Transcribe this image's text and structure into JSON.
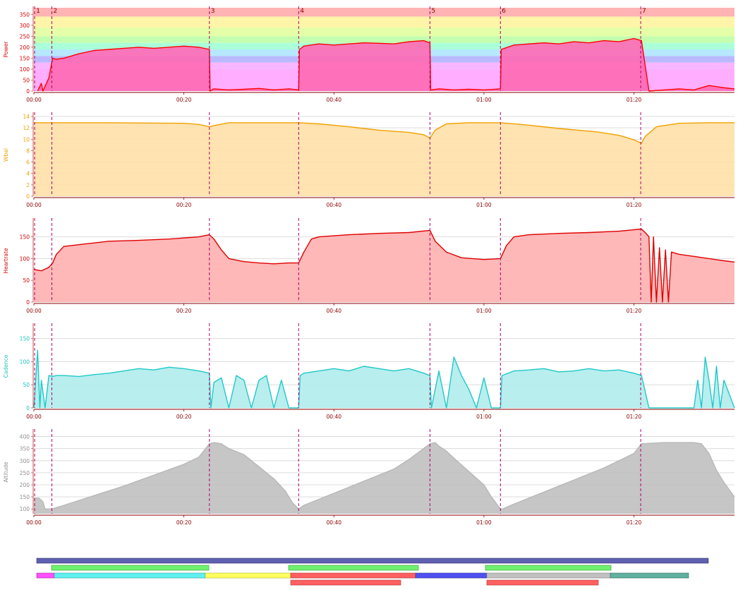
{
  "colors": {
    "axis_text": "#8b0000",
    "time_tick_text": "#8b0000",
    "grid": "#dcdcdc",
    "interval_line": "#b0006a"
  },
  "interval_labels": [
    "1",
    "2",
    "3",
    "4",
    "5",
    "6",
    "7"
  ],
  "chart_data": [
    {
      "type": "area",
      "id": "power",
      "ylabel": "Power",
      "label_color": "#d40000",
      "line_color": "#ff0000",
      "fill_color": "#ff69b4",
      "yticks": [
        0,
        50,
        100,
        150,
        200,
        250,
        300,
        350
      ],
      "ylim": [
        0,
        380
      ],
      "zones": [
        {
          "from": 0,
          "to": 100,
          "color": "#ffadff"
        },
        {
          "from": 100,
          "to": 130,
          "color": "#f7b6ff"
        },
        {
          "from": 130,
          "to": 160,
          "color": "#b9b9ff"
        },
        {
          "from": 160,
          "to": 190,
          "color": "#b6e8ff"
        },
        {
          "from": 190,
          "to": 220,
          "color": "#aaffd8"
        },
        {
          "from": 220,
          "to": 250,
          "color": "#c4ffb0"
        },
        {
          "from": 250,
          "to": 290,
          "color": "#e4ffa8"
        },
        {
          "from": 290,
          "to": 340,
          "color": "#fff5a8"
        },
        {
          "from": 340,
          "to": 380,
          "color": "#ffb3b3"
        }
      ],
      "series": [
        {
          "x": [
            0.5,
            1.0,
            1.2,
            2.0,
            2.5,
            3,
            4,
            5,
            6,
            8,
            10,
            12,
            14,
            16,
            18,
            20,
            22,
            23.4,
            23.5,
            24,
            26,
            28,
            30,
            32,
            34,
            35.3,
            35.4,
            36,
            38,
            40,
            42,
            44,
            46,
            48,
            50,
            52,
            52.8,
            52.9,
            54,
            56,
            58,
            60,
            62.2,
            62.3,
            64,
            66,
            68,
            70,
            72,
            74,
            76,
            78,
            80,
            81,
            82,
            84,
            86,
            88,
            90,
            92,
            93.4
          ],
          "y": [
            0,
            35,
            0,
            60,
            150,
            145,
            150,
            160,
            170,
            185,
            190,
            195,
            200,
            195,
            200,
            205,
            200,
            190,
            0,
            10,
            5,
            8,
            12,
            5,
            10,
            5,
            190,
            205,
            215,
            210,
            215,
            220,
            218,
            215,
            225,
            230,
            220,
            5,
            10,
            5,
            8,
            5,
            10,
            190,
            210,
            215,
            220,
            215,
            225,
            220,
            230,
            225,
            240,
            230,
            0,
            5,
            10,
            5,
            25,
            15,
            10
          ]
        }
      ]
    },
    {
      "type": "area",
      "id": "wbal",
      "ylabel": "Wbal",
      "label_color": "#f0a000",
      "line_color": "#f0a000",
      "fill_color": "#ffe0a8",
      "yticks": [
        0,
        2,
        4,
        6,
        8,
        10,
        12,
        14
      ],
      "ylim": [
        0,
        14.5
      ],
      "series": [
        {
          "x": [
            0,
            5,
            10,
            15,
            20,
            22,
            23.4,
            24,
            26,
            30,
            35.3,
            38,
            42,
            46,
            50,
            52,
            52.8,
            53.5,
            55,
            58,
            62.2,
            65,
            70,
            75,
            78,
            80,
            81,
            81.5,
            83,
            86,
            90,
            93.4
          ],
          "y": [
            12.9,
            12.9,
            12.9,
            12.85,
            12.8,
            12.6,
            12.2,
            12.4,
            12.9,
            12.9,
            12.9,
            12.7,
            12.2,
            11.6,
            11.2,
            10.8,
            10.2,
            11.6,
            12.7,
            12.9,
            12.9,
            12.6,
            11.9,
            11.3,
            10.7,
            9.9,
            9.3,
            10.5,
            12.2,
            12.8,
            12.9,
            12.9
          ]
        }
      ]
    },
    {
      "type": "area",
      "id": "heartrate",
      "ylabel": "Heartrate",
      "label_color": "#d40000",
      "line_color": "#dd0000",
      "fill_color": "#ffb0b0",
      "yticks": [
        0,
        50,
        100,
        150
      ],
      "ylim": [
        0,
        190
      ],
      "series": [
        {
          "x": [
            0,
            1,
            2,
            2.5,
            3,
            4,
            6,
            10,
            14,
            18,
            22,
            23.4,
            24,
            25,
            26,
            28,
            30,
            32,
            34,
            35.3,
            36,
            37,
            38,
            42,
            46,
            50,
            52.8,
            53.5,
            55,
            57,
            60,
            62.2,
            63,
            64,
            66,
            70,
            74,
            78,
            81,
            81.5,
            82,
            82.3,
            82.6,
            83,
            83.4,
            83.8,
            84.2,
            84.6,
            85,
            86,
            88,
            90,
            92,
            93.4
          ],
          "y": [
            75,
            72,
            80,
            90,
            110,
            128,
            132,
            140,
            142,
            145,
            150,
            155,
            145,
            120,
            100,
            93,
            90,
            88,
            90,
            90,
            115,
            145,
            150,
            155,
            158,
            160,
            165,
            140,
            115,
            102,
            98,
            100,
            130,
            150,
            155,
            158,
            160,
            163,
            168,
            160,
            150,
            0,
            150,
            0,
            125,
            0,
            120,
            0,
            115,
            110,
            105,
            100,
            95,
            92
          ]
        }
      ]
    },
    {
      "type": "area",
      "id": "cadence",
      "ylabel": "Cadence",
      "label_color": "#20c0c0",
      "line_color": "#20c8c8",
      "fill_color": "#b0ecec",
      "yticks": [
        0,
        50,
        100,
        150
      ],
      "ylim": [
        0,
        180
      ],
      "series": [
        {
          "x": [
            0,
            0.5,
            0.8,
            1,
            1.5,
            2,
            2.5,
            3,
            4,
            6,
            8,
            10,
            12,
            14,
            16,
            18,
            20,
            22,
            23.4,
            23.6,
            24,
            25,
            26,
            27,
            28,
            29,
            30,
            31,
            32,
            33,
            34,
            35.3,
            35.5,
            36,
            38,
            40,
            42,
            44,
            46,
            48,
            50,
            52,
            52.8,
            53,
            54,
            55,
            56,
            57,
            58,
            59,
            60,
            61,
            62.2,
            62.4,
            64,
            66,
            68,
            70,
            72,
            74,
            76,
            78,
            80,
            81,
            82,
            84,
            86,
            88,
            88.5,
            89,
            89.5,
            90,
            90.5,
            91,
            91.5,
            92,
            93.4
          ],
          "y": [
            0,
            125,
            0,
            60,
            0,
            70,
            68,
            70,
            70,
            68,
            72,
            75,
            80,
            85,
            82,
            88,
            85,
            80,
            75,
            0,
            55,
            65,
            0,
            70,
            60,
            0,
            60,
            70,
            0,
            60,
            0,
            0,
            70,
            75,
            80,
            85,
            80,
            90,
            85,
            80,
            85,
            75,
            70,
            0,
            80,
            0,
            110,
            70,
            40,
            0,
            65,
            0,
            0,
            70,
            80,
            82,
            85,
            78,
            80,
            85,
            80,
            82,
            75,
            70,
            0,
            0,
            0,
            0,
            60,
            0,
            110,
            60,
            0,
            90,
            0,
            60,
            0
          ]
        }
      ]
    },
    {
      "type": "area",
      "id": "altitude",
      "ylabel": "Altitude",
      "label_color": "#909090",
      "line_color": "#b8b8b8",
      "fill_color": "#c0c0c0",
      "yticks": [
        100,
        150,
        200,
        250,
        300,
        350,
        400
      ],
      "ylim": [
        80,
        425
      ],
      "series": [
        {
          "x": [
            0,
            0.7,
            1.2,
            1.5,
            2.4,
            4,
            8,
            12,
            16,
            20,
            22,
            23.4,
            24,
            25,
            26,
            28,
            30,
            32,
            33.5,
            34.5,
            35.3,
            36,
            40,
            44,
            48,
            50,
            52.8,
            53.5,
            54,
            55,
            56,
            58,
            60,
            61,
            62.2,
            62.5,
            64,
            68,
            72,
            76,
            80,
            81,
            84,
            86,
            88,
            89,
            90,
            91,
            92,
            93.4
          ],
          "y": [
            145,
            145,
            130,
            100,
            100,
            115,
            155,
            195,
            240,
            285,
            315,
            370,
            375,
            370,
            350,
            325,
            275,
            225,
            175,
            125,
            100,
            115,
            165,
            215,
            265,
            305,
            370,
            375,
            360,
            340,
            310,
            255,
            200,
            150,
            100,
            100,
            120,
            170,
            220,
            270,
            330,
            370,
            375,
            375,
            375,
            370,
            330,
            260,
            210,
            150
          ]
        }
      ]
    }
  ],
  "x_axis": {
    "tick_labels": [
      "00:00",
      "00:20",
      "00:40",
      "01:00",
      "01:20"
    ]
  }
}
